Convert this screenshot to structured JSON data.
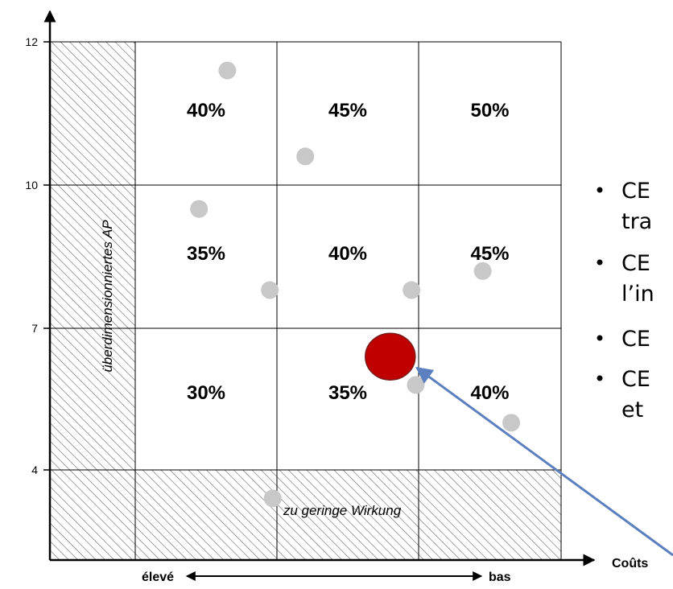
{
  "chart_data": {
    "type": "scatter",
    "title": "",
    "xlabel": "Coûts",
    "ylabel": "",
    "y_ticks": [
      "12",
      "10",
      "7",
      "4"
    ],
    "x_direction": {
      "left": "élevé",
      "right": "bas"
    },
    "columns": [
      "",
      "élevé",
      "",
      "bas"
    ],
    "rows": [
      {
        "range": "10–12",
        "cells": [
          "40%",
          "45%",
          "50%"
        ]
      },
      {
        "range": "7–10",
        "cells": [
          "35%",
          "40%",
          "45%"
        ]
      },
      {
        "range": "4–7",
        "cells": [
          "30%",
          "35%",
          "40%"
        ]
      }
    ],
    "zones": {
      "left": "überdimensionniertes AP",
      "bottom": "zu geringe Wirkung"
    },
    "points": [
      {
        "col": 0.65,
        "y": 11.6
      },
      {
        "col": 1.2,
        "y": 10.4
      },
      {
        "col": 0.45,
        "y": 9.5
      },
      {
        "col": 0.95,
        "y": 7.8
      },
      {
        "col": 1.95,
        "y": 7.8
      },
      {
        "col": 2.45,
        "y": 8.2
      },
      {
        "col": 1.98,
        "y": 5.8
      },
      {
        "col": 2.65,
        "y": 5.0
      },
      {
        "col": 0.97,
        "y": 3.4
      }
    ],
    "highlight": {
      "col": 1.8,
      "y": 6.4,
      "color": "#c00000"
    },
    "colors": {
      "point": "#c8c8c8",
      "highlight": "#c00000",
      "arrow": "#5b7fbf",
      "grid": "#000000"
    }
  },
  "bullets": [
    "CE",
    "tra",
    "CE",
    "l’in",
    "CE",
    "CE",
    "et"
  ]
}
